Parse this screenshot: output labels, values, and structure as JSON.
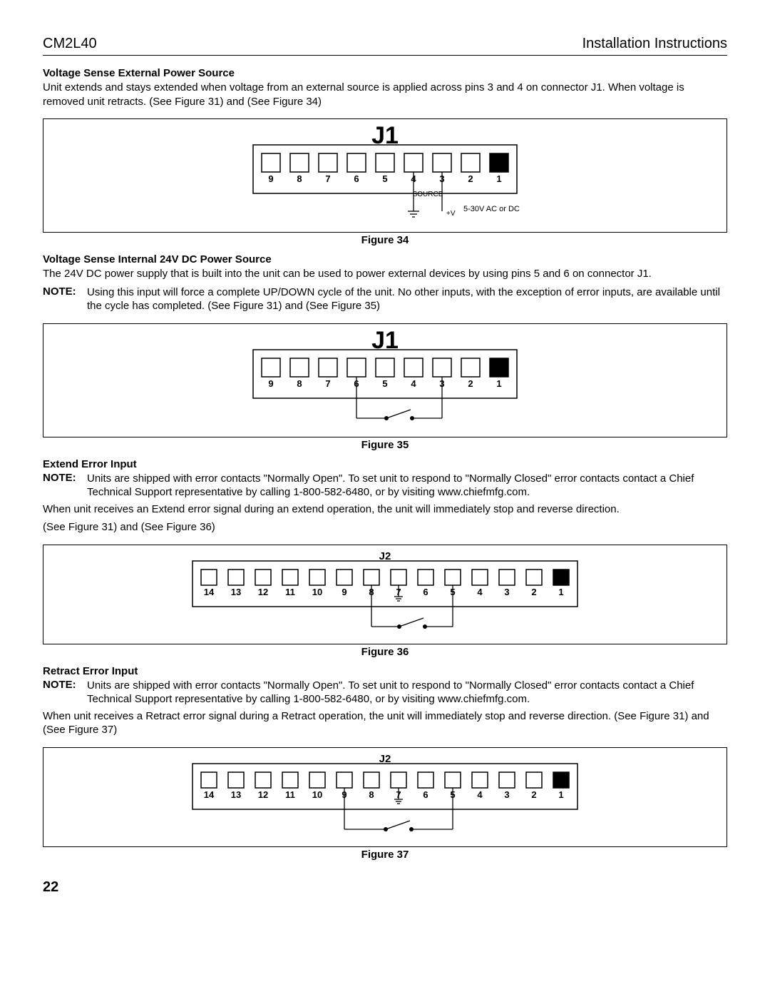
{
  "header": {
    "left": "CM2L40",
    "right": "Installation Instructions"
  },
  "page_number": "22",
  "sections": {
    "s1": {
      "title": "Voltage Sense External Power Source",
      "text": "Unit extends and stays extended when voltage from an external source is applied across pins 3 and 4 on connector J1. When voltage is removed unit retracts. (See Figure 31) and (See Figure 34)"
    },
    "fig34": {
      "caption": "Figure 34",
      "connector_label": "J1",
      "pins": [
        "9",
        "8",
        "7",
        "6",
        "5",
        "4",
        "3",
        "2",
        "1"
      ],
      "source_label": "SOURCE",
      "plusv": "+V",
      "range": "5-30V AC or DC",
      "ground_pin": 4,
      "signal_pin": 3,
      "filled_last": true
    },
    "s2": {
      "title": "Voltage Sense Internal 24V DC Power Source",
      "text": "The 24V DC power supply that is built into the unit can be used to power external devices by using pins 5 and 6 on connector J1.",
      "note": "Using this input will force a complete UP/DOWN cycle of the unit. No other inputs, with the exception of error inputs, are available until the cycle has completed. (See Figure 31) and (See Figure 35)"
    },
    "fig35": {
      "caption": "Figure 35",
      "connector_label": "J1",
      "pins": [
        "9",
        "8",
        "7",
        "6",
        "5",
        "4",
        "3",
        "2",
        "1"
      ],
      "switch_from": 6,
      "switch_to": 3,
      "filled_last": true
    },
    "s3": {
      "title": "Extend Error Input",
      "note": "Units are shipped with error contacts \"Normally Open\". To set unit to respond to \"Normally Closed\" error contacts contact a Chief Technical Support representative by calling 1-800-582-6480, or by visiting www.chiefmfg.com.",
      "text1": "When unit receives an Extend error signal during an extend operation, the unit will immediately stop and reverse direction.",
      "text2": "(See Figure 31) and (See Figure 36)"
    },
    "fig36": {
      "caption": "Figure 36",
      "connector_label": "J2",
      "pins": [
        "14",
        "13",
        "12",
        "11",
        "10",
        "9",
        "8",
        "7",
        "6",
        "5",
        "4",
        "3",
        "2",
        "1"
      ],
      "ground_pin": 7,
      "switch_from": 8,
      "switch_to": 5,
      "filled_last": true
    },
    "s4": {
      "title": "Retract Error Input",
      "note": "Units are shipped with error contacts \"Normally Open\". To set unit to respond to \"Normally Closed\" error contacts contact a Chief Technical Support representative by calling 1-800-582-6480, or by visiting www.chiefmfg.com.",
      "text": "When unit receives a Retract error signal during a Retract operation, the unit will immediately stop and reverse direction. (See Figure 31) and (See Figure 37)"
    },
    "fig37": {
      "caption": "Figure 37",
      "connector_label": "J2",
      "pins": [
        "14",
        "13",
        "12",
        "11",
        "10",
        "9",
        "8",
        "7",
        "6",
        "5",
        "4",
        "3",
        "2",
        "1"
      ],
      "ground_pin": 7,
      "switch_from": 9,
      "switch_to": 5,
      "filled_last": true
    }
  },
  "style": {
    "box_stroke": "#000000",
    "pin_size": 24,
    "pin_gap": 16,
    "j1_box_width": 840,
    "j1_box_height": 150,
    "j2_box_width": 840,
    "j2_box_height": 130,
    "font": "Arial"
  }
}
